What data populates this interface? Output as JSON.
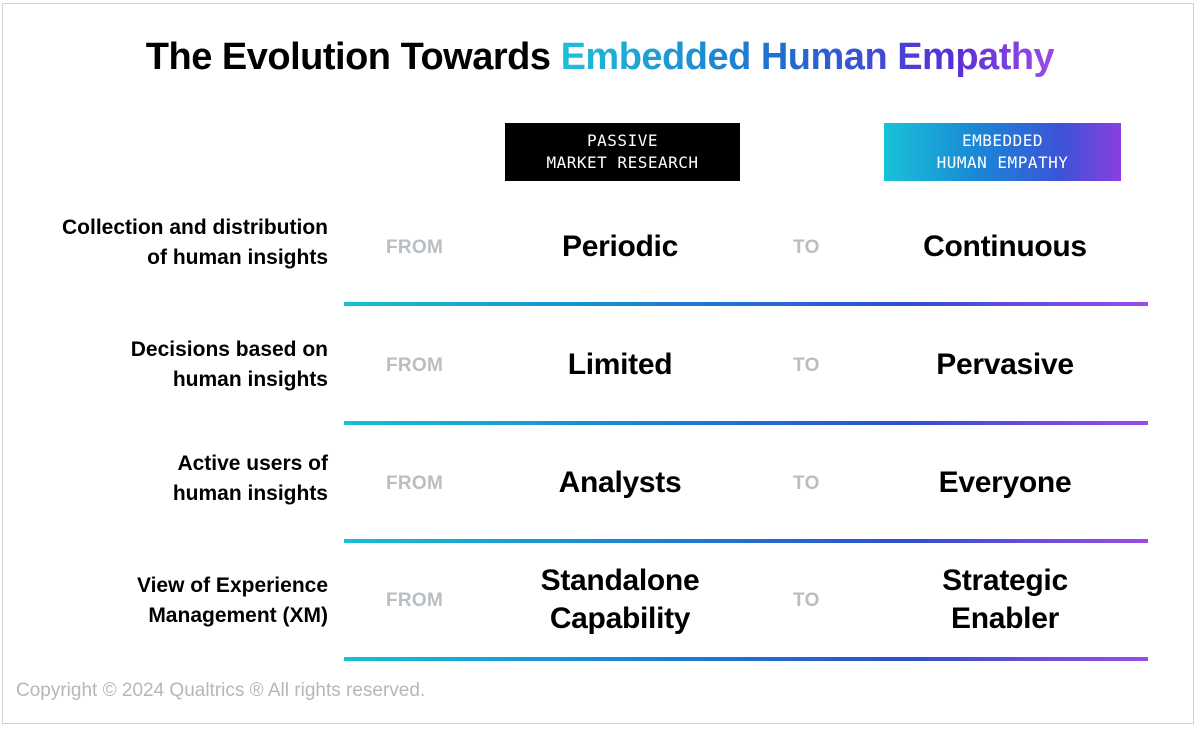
{
  "title": {
    "plain": "The Evolution Towards ",
    "highlight": "Embedded Human Empathy"
  },
  "columns": {
    "passive": "PASSIVE\nMARKET RESEARCH",
    "embedded": "EMBEDDED\nHUMAN EMPATHY"
  },
  "rows": [
    {
      "label": "Collection and distribution\nof human insights",
      "from_label": "FROM",
      "from_value": "Periodic",
      "to_label": "TO",
      "to_value": "Continuous"
    },
    {
      "label": "Decisions based on\nhuman insights",
      "from_label": "FROM",
      "from_value": "Limited",
      "to_label": "TO",
      "to_value": "Pervasive"
    },
    {
      "label": "Active users of\nhuman insights",
      "from_label": "FROM",
      "from_value": "Analysts",
      "to_label": "TO",
      "to_value": "Everyone"
    },
    {
      "label": "View of Experience\nManagement (XM)",
      "from_label": "FROM",
      "from_value": "Standalone\nCapability",
      "to_label": "TO",
      "to_value": "Strategic\nEnabler"
    }
  ],
  "copyright": "Copyright © 2024 Qualtrics ® All rights reserved.",
  "colors": {
    "gradient_start": "#17bfd4",
    "gradient_mid": "#1a7fd4",
    "gradient_end": "#9b4be6",
    "muted_text": "#b9bec3"
  }
}
